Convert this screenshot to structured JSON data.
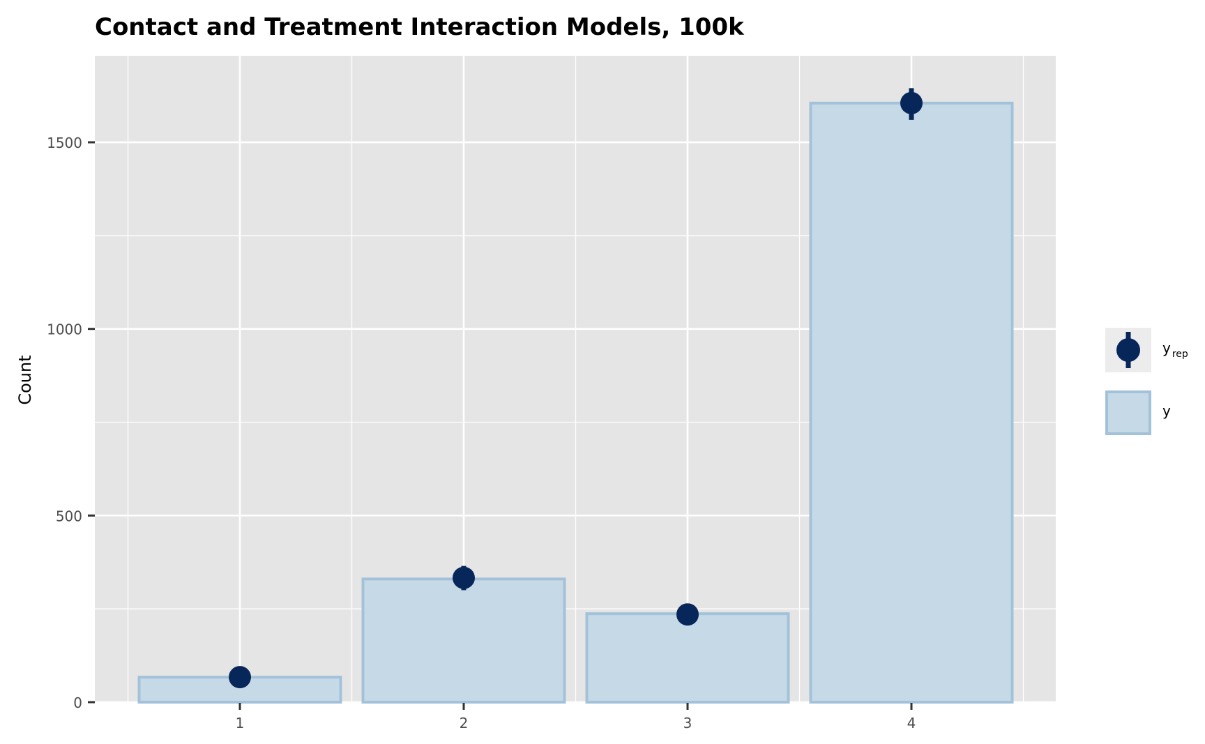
{
  "chart_data": {
    "type": "bar",
    "title": "Contact and Treatment Interaction Models, 100k",
    "xlabel": "",
    "ylabel": "Count",
    "categories": [
      "1",
      "2",
      "3",
      "4"
    ],
    "ylim": [
      0,
      1600
    ],
    "yticks": [
      0,
      500,
      1000,
      1500
    ],
    "grid": true,
    "legend_position": "right",
    "series": [
      {
        "name": "y",
        "kind": "bar",
        "values": [
          67,
          330,
          237,
          1605
        ]
      },
      {
        "name": "y_rep",
        "kind": "pointrange",
        "values": [
          67,
          333,
          235,
          1605
        ],
        "lower": [
          55,
          300,
          218,
          1560
        ],
        "upper": [
          80,
          365,
          255,
          1645
        ]
      }
    ],
    "legend": [
      {
        "main": "y",
        "sub": "rep",
        "type": "point"
      },
      {
        "main": "y",
        "sub": "",
        "type": "bar"
      }
    ],
    "colors": {
      "panel_bg": "#e5e5e5",
      "grid": "#ffffff",
      "bar_fill": "#c6d9e7",
      "bar_stroke": "#a3c2d9",
      "point": "#07265a"
    }
  }
}
